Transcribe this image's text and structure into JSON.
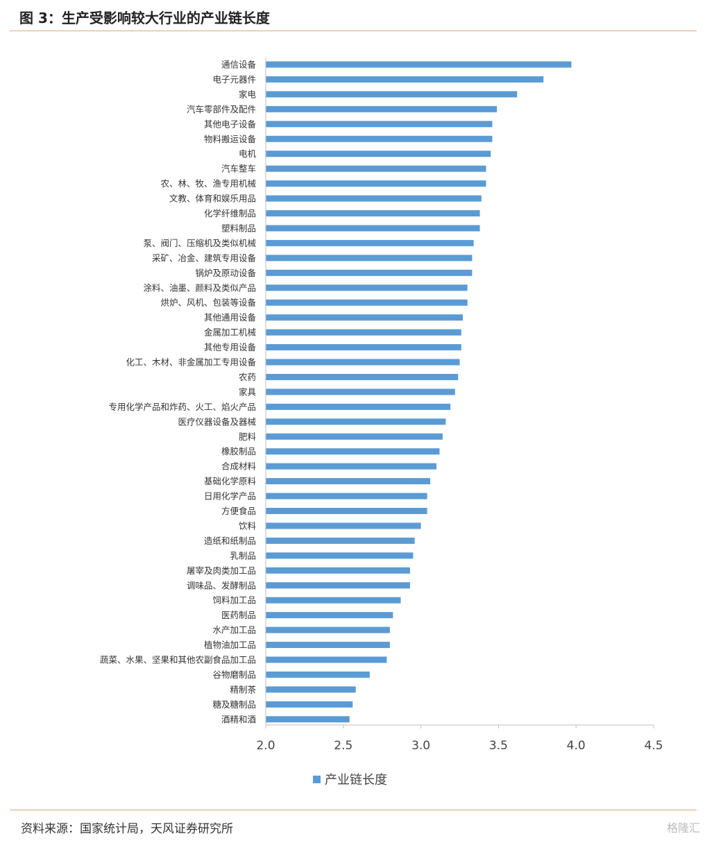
{
  "header": {
    "title": "图 3：生产受影响较大行业的产业链长度"
  },
  "footer": {
    "source": "资料来源：国家统计局，天风证券研究所",
    "brand": "格隆汇"
  },
  "colors": {
    "bar": "#5b9bd5",
    "axis": "#bfbfbf",
    "rule": "#d9a877"
  },
  "chart_data": {
    "type": "bar",
    "orientation": "horizontal",
    "xlim": [
      2.0,
      4.5
    ],
    "xticks": [
      "2.0",
      "2.5",
      "3.0",
      "3.5",
      "4.0",
      "4.5"
    ],
    "legend": {
      "position": "bottom",
      "label": "产业链长度"
    },
    "series": [
      {
        "name": "产业链长度"
      }
    ],
    "categories": [
      "通信设备",
      "电子元器件",
      "家电",
      "汽车零部件及配件",
      "其他电子设备",
      "物料搬运设备",
      "电机",
      "汽车整车",
      "农、林、牧、渔专用机械",
      "文教、体育和娱乐用品",
      "化学纤维制品",
      "塑料制品",
      "泵、阀门、压缩机及类似机械",
      "采矿、冶金、建筑专用设备",
      "锅炉及原动设备",
      "涂料、油墨、颜料及类似产品",
      "烘炉、风机、包装等设备",
      "其他通用设备",
      "金属加工机械",
      "其他专用设备",
      "化工、木材、非金属加工专用设备",
      "农药",
      "家具",
      "专用化学产品和炸药、火工、焰火产品",
      "医疗仪器设备及器械",
      "肥料",
      "橡胶制品",
      "合成材料",
      "基础化学原料",
      "日用化学产品",
      "方便食品",
      "饮料",
      "造纸和纸制品",
      "乳制品",
      "屠宰及肉类加工品",
      "调味品、发酵制品",
      "饲料加工品",
      "医药制品",
      "水产加工品",
      "植物油加工品",
      "蔬菜、水果、坚果和其他农副食品加工品",
      "谷物磨制品",
      "精制茶",
      "糖及糖制品",
      "酒精和酒"
    ],
    "values": [
      3.97,
      3.79,
      3.62,
      3.49,
      3.46,
      3.46,
      3.45,
      3.42,
      3.42,
      3.39,
      3.38,
      3.38,
      3.34,
      3.33,
      3.33,
      3.3,
      3.3,
      3.27,
      3.26,
      3.26,
      3.25,
      3.24,
      3.22,
      3.19,
      3.16,
      3.14,
      3.12,
      3.1,
      3.06,
      3.04,
      3.04,
      3.0,
      2.96,
      2.95,
      2.93,
      2.93,
      2.87,
      2.82,
      2.8,
      2.8,
      2.78,
      2.67,
      2.58,
      2.56,
      2.54
    ]
  }
}
